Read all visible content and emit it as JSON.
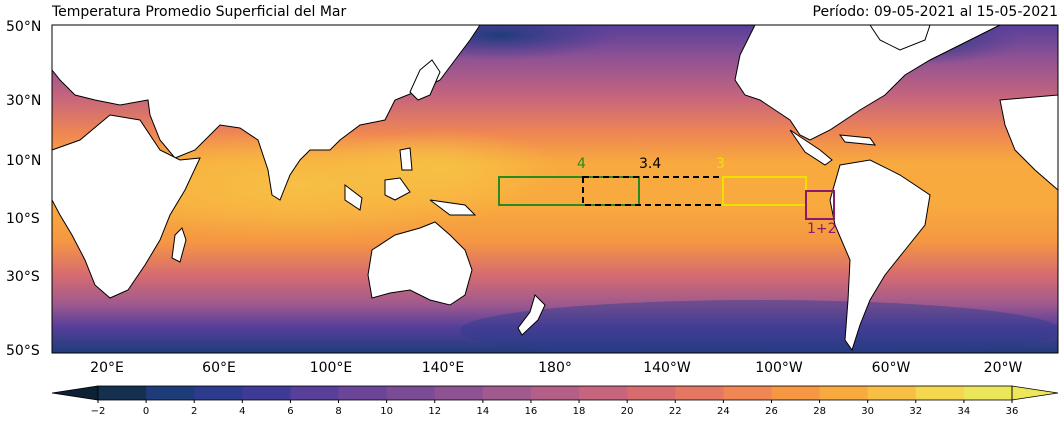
{
  "title_left": "Temperatura Promedio Superficial del Mar",
  "title_right": "Período: 09-05-2021 al 15-05-2021",
  "lat_labels": [
    "50°N",
    "30°N",
    "10°N",
    "10°S",
    "30°S",
    "50°S"
  ],
  "lon_labels": [
    "20°E",
    "60°E",
    "100°E",
    "140°E",
    "180°",
    "140°W",
    "100°W",
    "60°W",
    "20°W"
  ],
  "colorbar": {
    "ticks": [
      "−2",
      "0",
      "2",
      "4",
      "6",
      "8",
      "10",
      "12",
      "14",
      "16",
      "18",
      "20",
      "22",
      "24",
      "26",
      "28",
      "30",
      "32",
      "34",
      "36"
    ],
    "colors": [
      "#0d2135",
      "#15304f",
      "#1f3c7a",
      "#2d3b8e",
      "#403a97",
      "#573f9a",
      "#6a4598",
      "#7b4b96",
      "#8e5293",
      "#a05a8e",
      "#b35f87",
      "#c6657d",
      "#d76c6f",
      "#e47762",
      "#ef8653",
      "#f59743",
      "#f8aa3e",
      "#f7c045",
      "#f4d74e",
      "#ece65a"
    ],
    "extend": "both"
  },
  "regions": [
    {
      "label": "4",
      "color": "#2a8a1e"
    },
    {
      "label": "3.4",
      "color": "#000000"
    },
    {
      "label": "3",
      "color": "#f0e000"
    },
    {
      "label": "1+2",
      "color": "#8a1a6a"
    }
  ],
  "colors": {
    "land": "#ffffff",
    "coast": "#000000"
  }
}
